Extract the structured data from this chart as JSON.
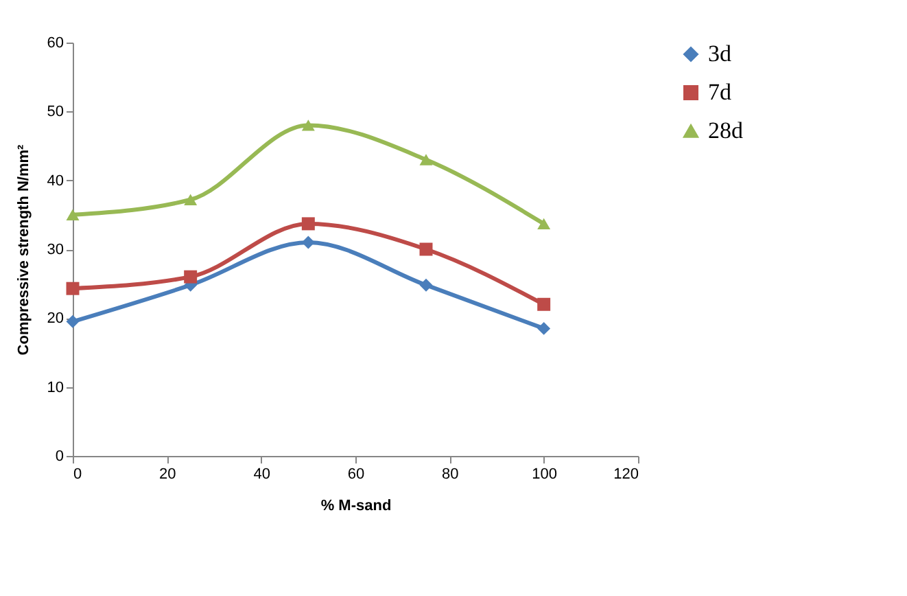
{
  "chart_data": {
    "type": "line",
    "xlabel": "% M-sand",
    "ylabel": "Compressive strength N/mm²",
    "x": [
      0,
      25,
      50,
      75,
      100
    ],
    "series": [
      {
        "name": "3d",
        "color": "#4a7ebb",
        "marker": "diamond",
        "values": [
          19.5,
          24.8,
          31.0,
          24.8,
          18.5
        ]
      },
      {
        "name": "7d",
        "color": "#be4b48",
        "marker": "square",
        "values": [
          24.3,
          26.0,
          33.7,
          30.0,
          22.0
        ]
      },
      {
        "name": "28d",
        "color": "#98b954",
        "marker": "triangle",
        "values": [
          35.0,
          37.2,
          48.0,
          43.0,
          33.7
        ]
      }
    ],
    "xlim": [
      0,
      120
    ],
    "xticks": [
      0,
      20,
      40,
      60,
      80,
      100,
      120
    ],
    "ylim": [
      0,
      60
    ],
    "yticks": [
      0,
      10,
      20,
      30,
      40,
      50,
      60
    ],
    "grid": false,
    "legend": "right",
    "line_style": "solid"
  }
}
